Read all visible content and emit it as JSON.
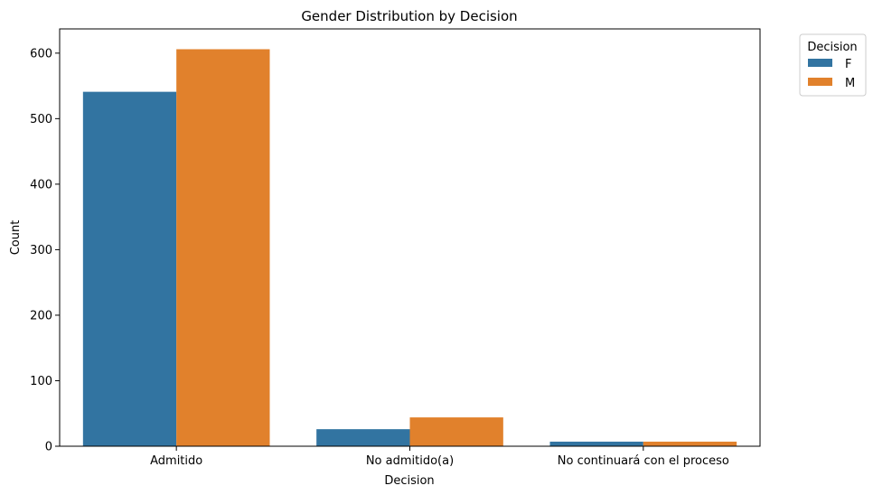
{
  "chart_data": {
    "type": "bar",
    "title": "Gender Distribution by Decision",
    "xlabel": "Decision",
    "ylabel": "Count",
    "categories": [
      "Admitido",
      "No admitido(a)",
      "No continuará con el proceso"
    ],
    "series": [
      {
        "name": "F",
        "color": "#3274a1",
        "values": [
          541,
          26,
          7
        ]
      },
      {
        "name": "M",
        "color": "#e1812c",
        "values": [
          606,
          44,
          7
        ]
      }
    ],
    "ylim": [
      0,
      637
    ],
    "yticks": [
      0,
      100,
      200,
      300,
      400,
      500,
      600
    ],
    "grid": false,
    "legend": {
      "title": "Decision",
      "placement": "outside upper right"
    }
  }
}
